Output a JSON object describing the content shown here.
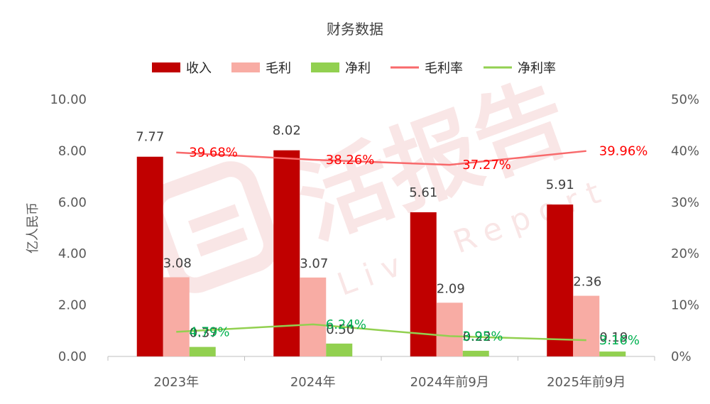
{
  "chart_data": {
    "type": "bar",
    "title": "财务数据",
    "ylabel": "亿人民币",
    "ylim": [
      0,
      10
    ],
    "y_ticks": [
      "0.00",
      "2.00",
      "4.00",
      "6.00",
      "8.00",
      "10.00"
    ],
    "y2lim": [
      0,
      50
    ],
    "y2_ticks": [
      "0%",
      "10%",
      "20%",
      "30%",
      "40%",
      "50%"
    ],
    "categories": [
      "2023年",
      "2024年",
      "2024年前9月",
      "2025年前9月"
    ],
    "series": [
      {
        "name": "收入",
        "kind": "bar",
        "color": "#C00000",
        "values": [
          7.77,
          8.02,
          5.61,
          5.91
        ],
        "labels": [
          "7.77",
          "8.02",
          "5.61",
          "5.91"
        ]
      },
      {
        "name": "毛利",
        "kind": "bar",
        "color": "#F8ACA4",
        "values": [
          3.08,
          3.07,
          2.09,
          2.36
        ],
        "labels": [
          "3.08",
          "3.07",
          "2.09",
          "2.36"
        ]
      },
      {
        "name": "净利",
        "kind": "bar",
        "color": "#92D050",
        "values": [
          0.37,
          0.5,
          0.22,
          0.19
        ],
        "labels": [
          "0.37",
          "0.50",
          "0.22",
          "0.19"
        ]
      },
      {
        "name": "毛利率",
        "kind": "line",
        "axis": "right",
        "color": "#F8696B",
        "label_color": "#FF0000",
        "values": [
          39.68,
          38.26,
          37.27,
          39.96
        ],
        "labels": [
          "39.68%",
          "38.26%",
          "37.27%",
          "39.96%"
        ]
      },
      {
        "name": "净利率",
        "kind": "line",
        "axis": "right",
        "color": "#92D050",
        "label_color": "#00B050",
        "values": [
          4.79,
          6.24,
          3.95,
          3.16
        ],
        "labels": [
          "4.79%",
          "6.24%",
          "3.95%",
          "3.16%"
        ]
      }
    ],
    "legend_position": "top-center",
    "grid": false
  },
  "watermark": {
    "text": "活报告",
    "subtext": "Live Report"
  }
}
